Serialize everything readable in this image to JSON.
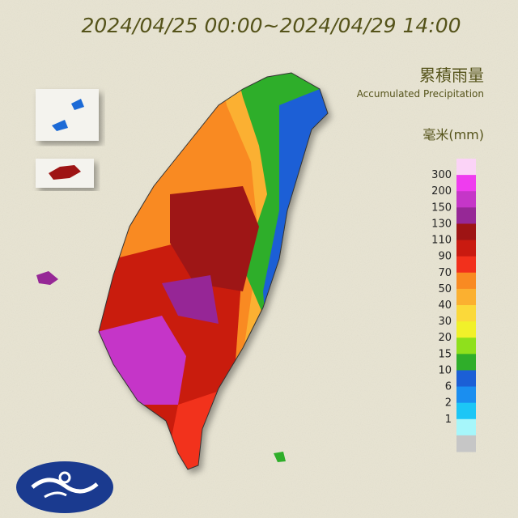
{
  "header": {
    "title": "2024/04/25 00:00~2024/04/29 14:00"
  },
  "legend": {
    "title": "累積雨量",
    "subtitle": "Accumulated Precipitation",
    "unit": "毫米(mm)",
    "labels": [
      300,
      200,
      150,
      130,
      110,
      90,
      70,
      50,
      40,
      30,
      20,
      15,
      10,
      6,
      2,
      1
    ],
    "colors": [
      "#fbd3f7",
      "#ef3cef",
      "#c536c8",
      "#962896",
      "#9e1414",
      "#c91a10",
      "#f2301c",
      "#f98a22",
      "#fbb030",
      "#fbd93a",
      "#f1f12a",
      "#8fe01c",
      "#2fae2a",
      "#1b5fd6",
      "#1a8ef0",
      "#1cc6f6",
      "#a6f6fa",
      "#c6c6c6"
    ]
  }
}
